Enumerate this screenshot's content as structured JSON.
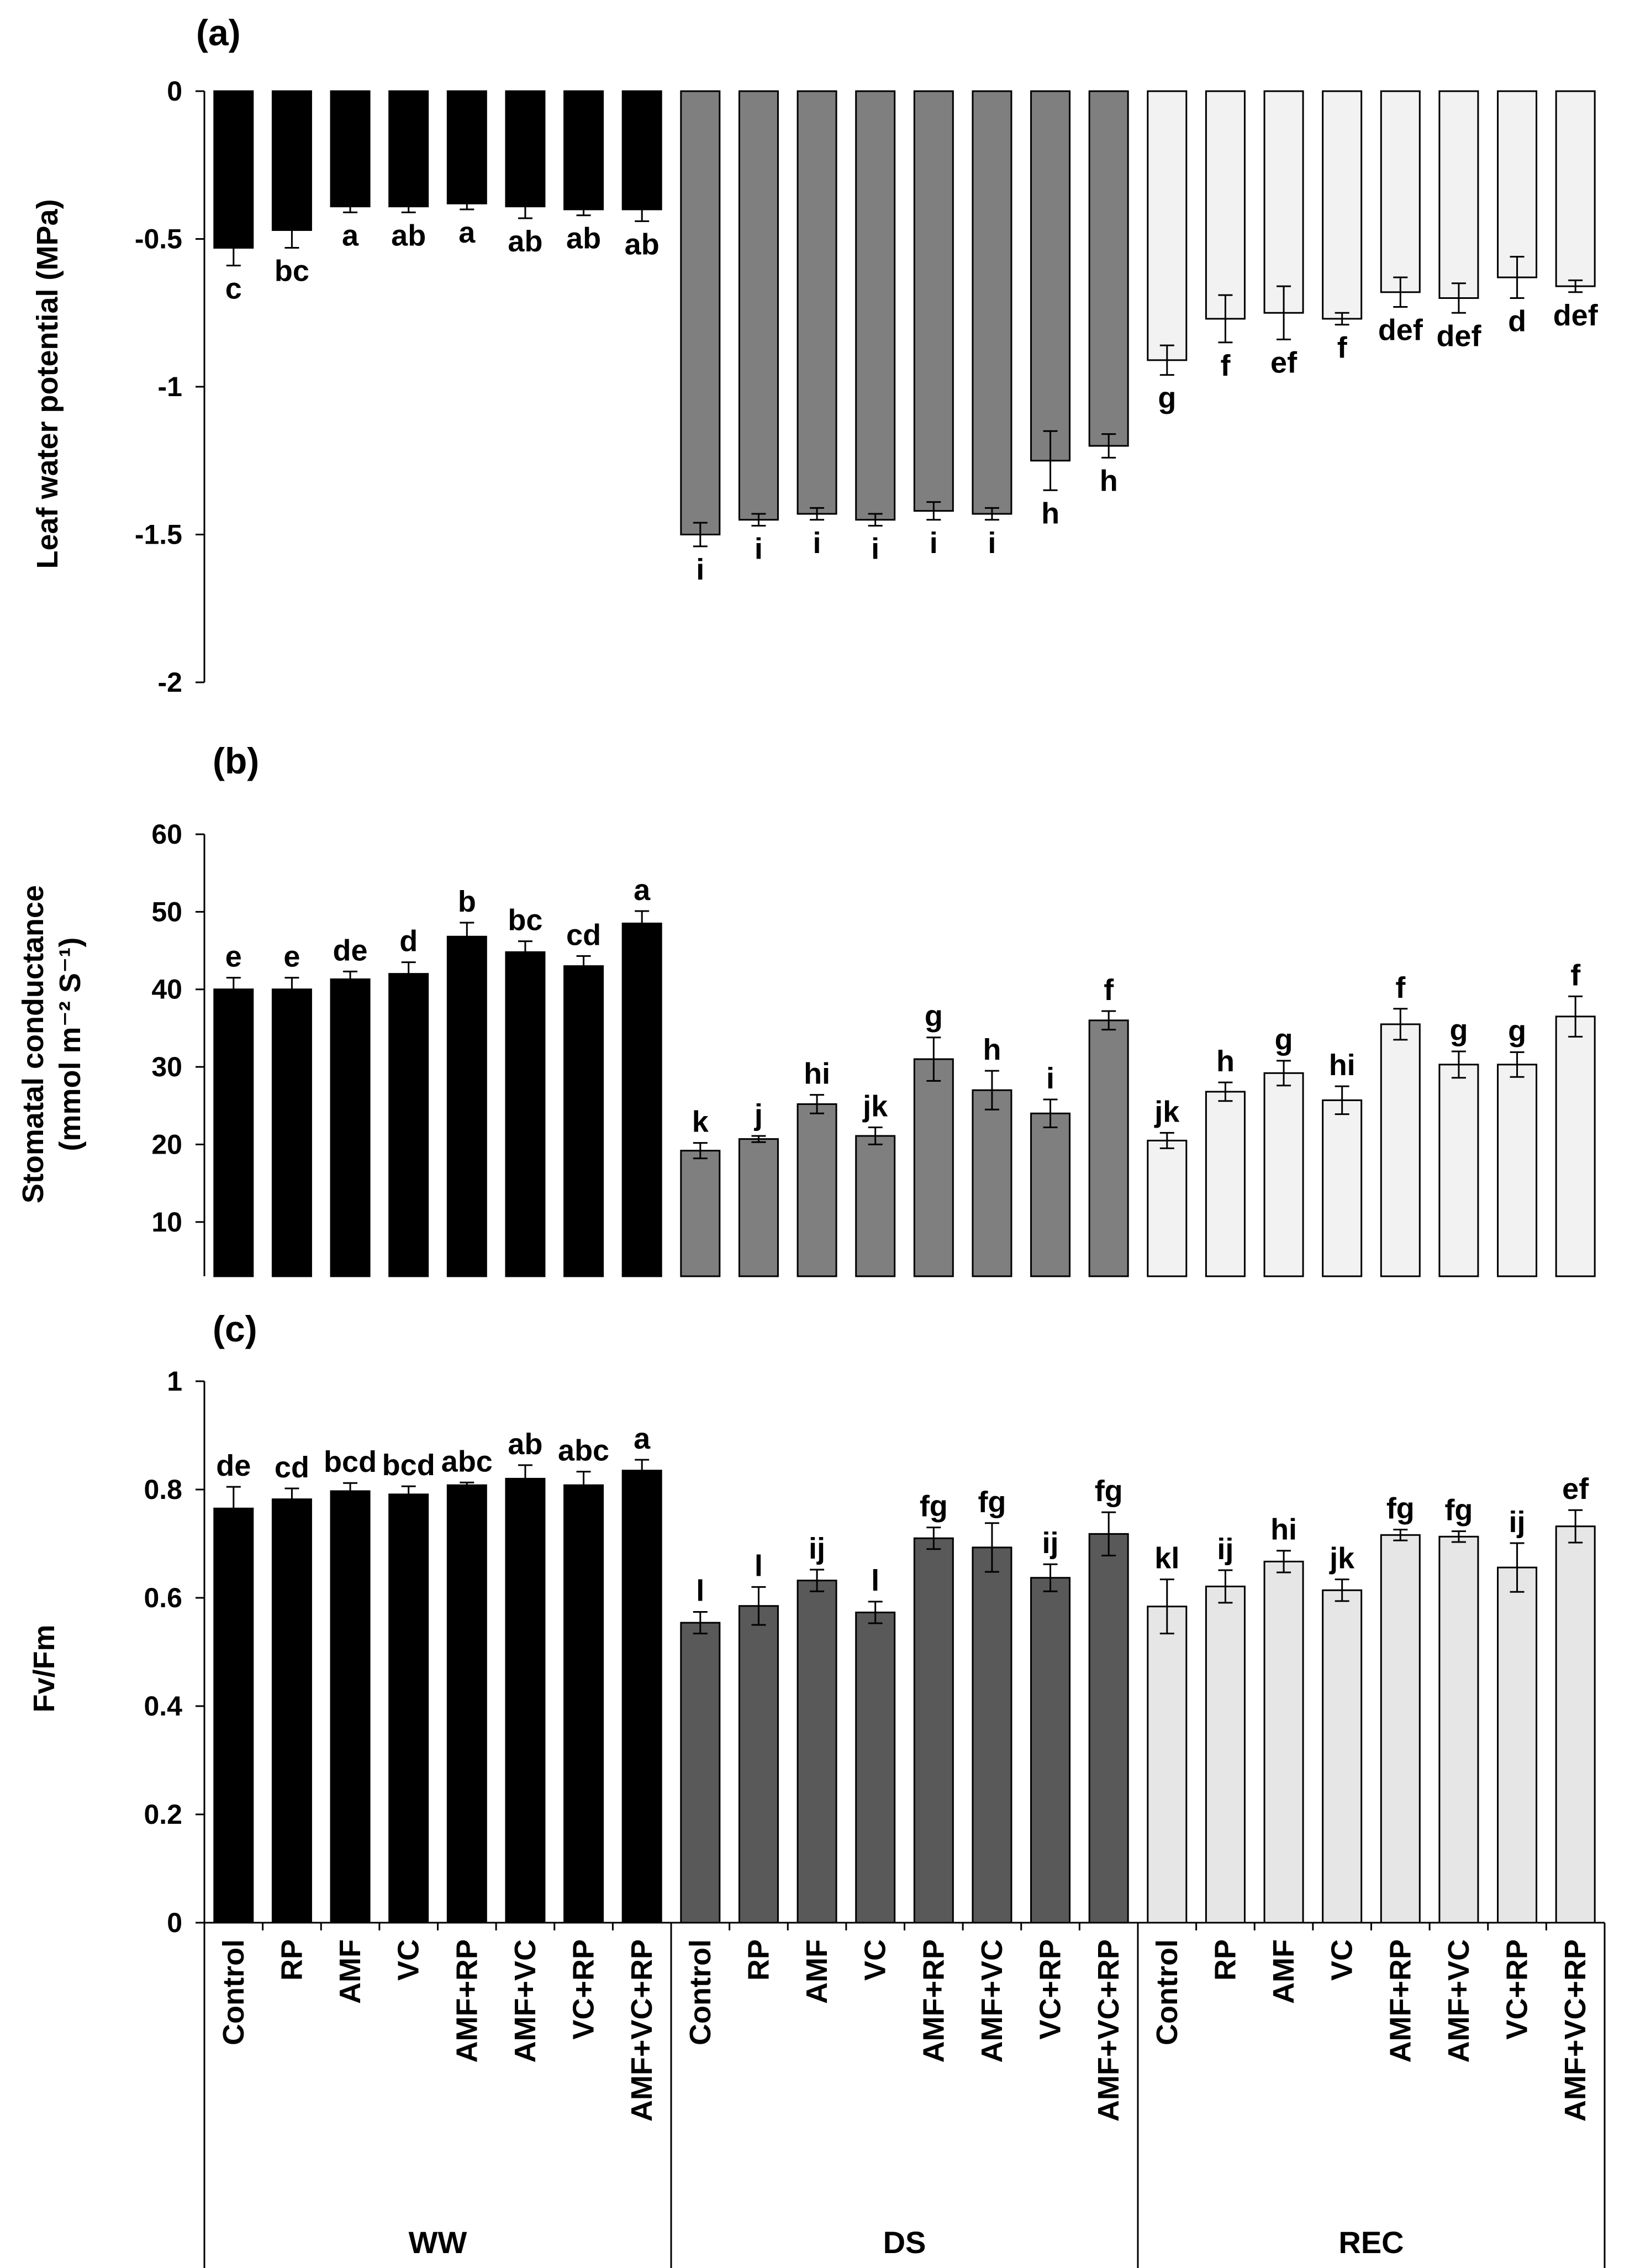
{
  "chart_data": [
    {
      "id": "a",
      "type": "bar",
      "panel_label": "(a)",
      "ylabel": "Leaf water potential (MPa)",
      "ylim": [
        -2,
        0
      ],
      "yticks": [
        "0",
        "-0.5",
        "-1",
        "-1.5",
        "-2"
      ],
      "ytick_values": [
        0,
        -0.5,
        -1,
        -1.5,
        -2
      ],
      "group_colors": [
        "#000000",
        "#7f7f7f",
        "#f2f2f2"
      ],
      "values": [
        -0.53,
        -0.47,
        -0.39,
        -0.39,
        -0.38,
        -0.39,
        -0.4,
        -0.4,
        -1.5,
        -1.45,
        -1.43,
        -1.45,
        -1.42,
        -1.43,
        -1.25,
        -1.2,
        -0.91,
        -0.77,
        -0.75,
        -0.77,
        -0.68,
        -0.7,
        -0.63,
        -0.66
      ],
      "errors": [
        0.06,
        0.06,
        0.02,
        0.02,
        0.02,
        0.04,
        0.02,
        0.04,
        0.04,
        0.02,
        0.02,
        0.02,
        0.03,
        0.02,
        0.1,
        0.04,
        0.05,
        0.08,
        0.09,
        0.02,
        0.05,
        0.05,
        0.07,
        0.02
      ],
      "letters": [
        "c",
        "bc",
        "a",
        "ab",
        "a",
        "ab",
        "ab",
        "ab",
        "i",
        "i",
        "i",
        "i",
        "i",
        "i",
        "h",
        "h",
        "g",
        "f",
        "ef",
        "f",
        "def",
        "def",
        "d",
        "def"
      ]
    },
    {
      "id": "b",
      "type": "bar",
      "panel_label": "(b)",
      "ylabel_line1": "Stomatal conductance",
      "ylabel_line2": "(mmol m⁻² S⁻¹)",
      "ylim": [
        3,
        60
      ],
      "yticks": [
        "60",
        "50",
        "40",
        "30",
        "20",
        "10"
      ],
      "ytick_values": [
        60,
        50,
        40,
        30,
        20,
        10
      ],
      "group_colors": [
        "#000000",
        "#7f7f7f",
        "#f2f2f2"
      ],
      "values": [
        40.0,
        40.0,
        41.3,
        42.0,
        46.8,
        44.8,
        43.0,
        48.5,
        19.2,
        20.7,
        25.2,
        21.1,
        31.0,
        27.0,
        24.0,
        36.0,
        20.5,
        26.8,
        29.2,
        25.7,
        35.5,
        30.3,
        30.3,
        36.5
      ],
      "errors": [
        1.5,
        1.5,
        1.0,
        1.5,
        1.8,
        1.4,
        1.3,
        1.6,
        1.0,
        0.4,
        1.2,
        1.1,
        2.8,
        2.5,
        1.8,
        1.2,
        1.0,
        1.2,
        1.6,
        1.8,
        2.0,
        1.7,
        1.6,
        2.6
      ],
      "letters": [
        "e",
        "e",
        "de",
        "d",
        "b",
        "bc",
        "cd",
        "a",
        "k",
        "j",
        "hi",
        "jk",
        "g",
        "h",
        "i",
        "f",
        "jk",
        "h",
        "g",
        "hi",
        "f",
        "g",
        "g",
        "f"
      ]
    },
    {
      "id": "c",
      "type": "bar",
      "panel_label": "(c)",
      "ylabel": "Fv/Fm",
      "ylim": [
        0,
        1
      ],
      "yticks": [
        "1",
        "0.8",
        "0.6",
        "0.4",
        "0.2",
        "0"
      ],
      "ytick_values": [
        1,
        0.8,
        0.6,
        0.4,
        0.2,
        0
      ],
      "group_colors": [
        "#000000",
        "#595959",
        "#e6e6e6"
      ],
      "values": [
        0.765,
        0.782,
        0.797,
        0.791,
        0.808,
        0.82,
        0.808,
        0.835,
        0.554,
        0.585,
        0.632,
        0.573,
        0.71,
        0.693,
        0.637,
        0.718,
        0.584,
        0.621,
        0.667,
        0.614,
        0.716,
        0.713,
        0.656,
        0.732
      ],
      "errors": [
        0.04,
        0.02,
        0.015,
        0.015,
        0.005,
        0.025,
        0.025,
        0.02,
        0.02,
        0.035,
        0.02,
        0.02,
        0.02,
        0.045,
        0.025,
        0.04,
        0.05,
        0.03,
        0.02,
        0.02,
        0.01,
        0.01,
        0.045,
        0.03
      ],
      "letters": [
        "de",
        "cd",
        "bcd",
        "bcd",
        "abc",
        "ab",
        "abc",
        "a",
        "l",
        "l",
        "ij",
        "l",
        "fg",
        "fg",
        "ij",
        "fg",
        "kl",
        "ij",
        "hi",
        "jk",
        "fg",
        "fg",
        "ij",
        "ef"
      ]
    }
  ],
  "x_axis": {
    "categories": [
      "Control",
      "RP",
      "AMF",
      "VC",
      "AMF+RP",
      "AMF+VC",
      "VC+RP",
      "AMF+VC+RP",
      "Control",
      "RP",
      "AMF",
      "VC",
      "AMF+RP",
      "AMF+VC",
      "VC+RP",
      "AMF+VC+RP",
      "Control",
      "RP",
      "AMF",
      "VC",
      "AMF+RP",
      "AMF+VC",
      "VC+RP",
      "AMF+VC+RP"
    ],
    "groups": [
      "WW",
      "DS",
      "REC"
    ]
  }
}
